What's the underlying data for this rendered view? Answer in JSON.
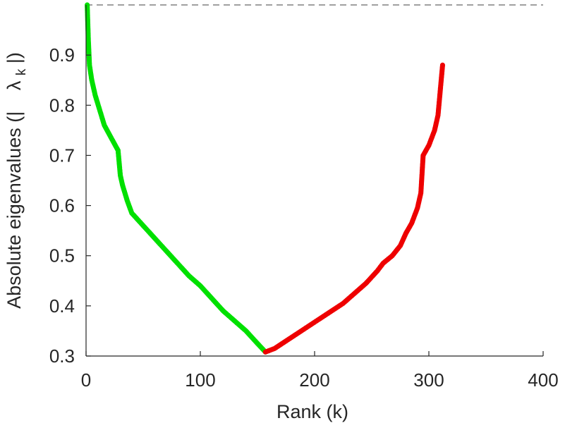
{
  "chart_data": {
    "type": "line",
    "title": "",
    "xlabel": "Rank (k)",
    "ylabel": "Absolute eigenvalues (|λ_k|)",
    "ylabel_parts": {
      "prefix": "Absolute eigenvalues (|",
      "symbol": "λ",
      "subscript": "k",
      "suffix": "|)"
    },
    "xlim": [
      0,
      400
    ],
    "ylim": [
      0.3,
      1.0
    ],
    "xticks": [
      "0",
      "100",
      "200",
      "300",
      "400"
    ],
    "yticks": [
      "0.3",
      "0.4",
      "0.5",
      "0.6",
      "0.7",
      "0.8",
      "0.9"
    ],
    "grid": false,
    "reference_line": {
      "y": 1.0,
      "style": "dashed",
      "color": "#808080"
    },
    "series": [
      {
        "color": "#00e000",
        "markers": true,
        "points": [
          [
            1,
            1.0
          ],
          [
            2,
            0.93
          ],
          [
            3,
            0.88
          ],
          [
            5,
            0.85
          ],
          [
            8,
            0.82
          ],
          [
            12,
            0.79
          ],
          [
            16,
            0.76
          ],
          [
            22,
            0.735
          ],
          [
            28,
            0.71
          ],
          [
            30,
            0.66
          ],
          [
            32,
            0.64
          ],
          [
            36,
            0.61
          ],
          [
            40,
            0.585
          ],
          [
            50,
            0.56
          ],
          [
            60,
            0.535
          ],
          [
            70,
            0.51
          ],
          [
            80,
            0.485
          ],
          [
            90,
            0.46
          ],
          [
            100,
            0.44
          ],
          [
            110,
            0.415
          ],
          [
            120,
            0.39
          ],
          [
            130,
            0.37
          ],
          [
            140,
            0.35
          ],
          [
            150,
            0.325
          ],
          [
            157,
            0.308
          ]
        ]
      },
      {
        "color": "#ee0000",
        "markers": true,
        "points": [
          [
            157,
            0.308
          ],
          [
            165,
            0.315
          ],
          [
            175,
            0.33
          ],
          [
            185,
            0.345
          ],
          [
            195,
            0.36
          ],
          [
            205,
            0.375
          ],
          [
            215,
            0.39
          ],
          [
            225,
            0.405
          ],
          [
            235,
            0.425
          ],
          [
            245,
            0.445
          ],
          [
            255,
            0.47
          ],
          [
            260,
            0.485
          ],
          [
            268,
            0.5
          ],
          [
            275,
            0.52
          ],
          [
            280,
            0.545
          ],
          [
            285,
            0.565
          ],
          [
            290,
            0.595
          ],
          [
            293,
            0.625
          ],
          [
            295,
            0.7
          ],
          [
            300,
            0.72
          ],
          [
            305,
            0.75
          ],
          [
            308,
            0.78
          ],
          [
            310,
            0.83
          ],
          [
            312,
            0.88
          ]
        ]
      }
    ]
  }
}
